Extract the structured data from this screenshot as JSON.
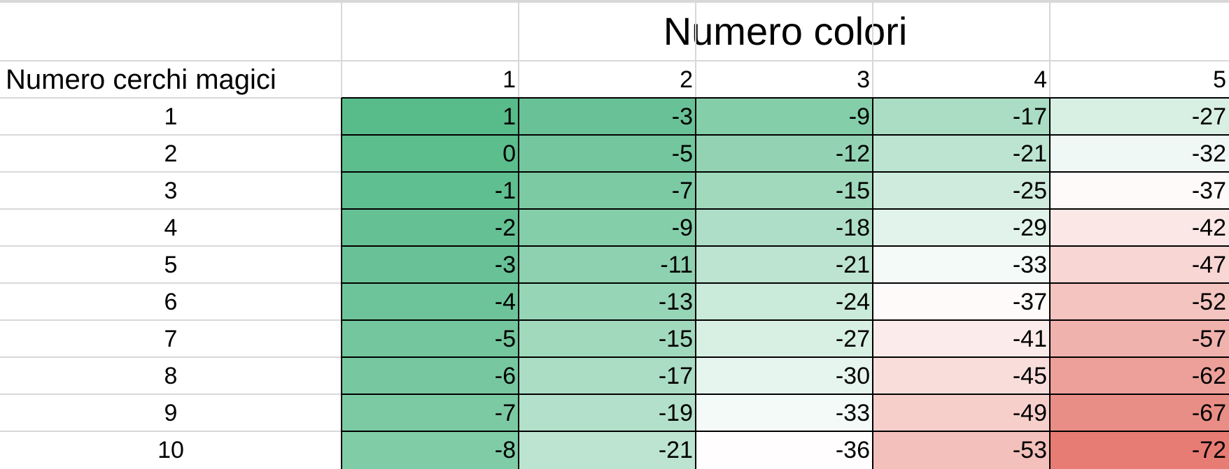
{
  "table": {
    "title": "Numero colori",
    "row_header_label": "Numero cerchi magici",
    "columns": [
      "1",
      "2",
      "3",
      "4",
      "5"
    ],
    "rows": [
      {
        "label": "1",
        "values": [
          "1",
          "-3",
          "-9",
          "-17",
          "-27"
        ]
      },
      {
        "label": "2",
        "values": [
          "0",
          "-5",
          "-12",
          "-21",
          "-32"
        ]
      },
      {
        "label": "3",
        "values": [
          "-1",
          "-7",
          "-15",
          "-25",
          "-37"
        ]
      },
      {
        "label": "4",
        "values": [
          "-2",
          "-9",
          "-18",
          "-29",
          "-42"
        ]
      },
      {
        "label": "5",
        "values": [
          "-3",
          "-11",
          "-21",
          "-33",
          "-47"
        ]
      },
      {
        "label": "6",
        "values": [
          "-4",
          "-13",
          "-24",
          "-37",
          "-52"
        ]
      },
      {
        "label": "7",
        "values": [
          "-5",
          "-15",
          "-27",
          "-41",
          "-57"
        ]
      },
      {
        "label": "8",
        "values": [
          "-6",
          "-17",
          "-30",
          "-45",
          "-62"
        ]
      },
      {
        "label": "9",
        "values": [
          "-7",
          "-19",
          "-33",
          "-49",
          "-67"
        ]
      },
      {
        "label": "10",
        "values": [
          "-8",
          "-21",
          "-36",
          "-53",
          "-72"
        ]
      }
    ]
  },
  "colors": {
    "max": "#57bb8a",
    "mid": "#ffffff",
    "min": "#e67c73",
    "grid": "#d8d8d8",
    "border": "#000000"
  }
}
